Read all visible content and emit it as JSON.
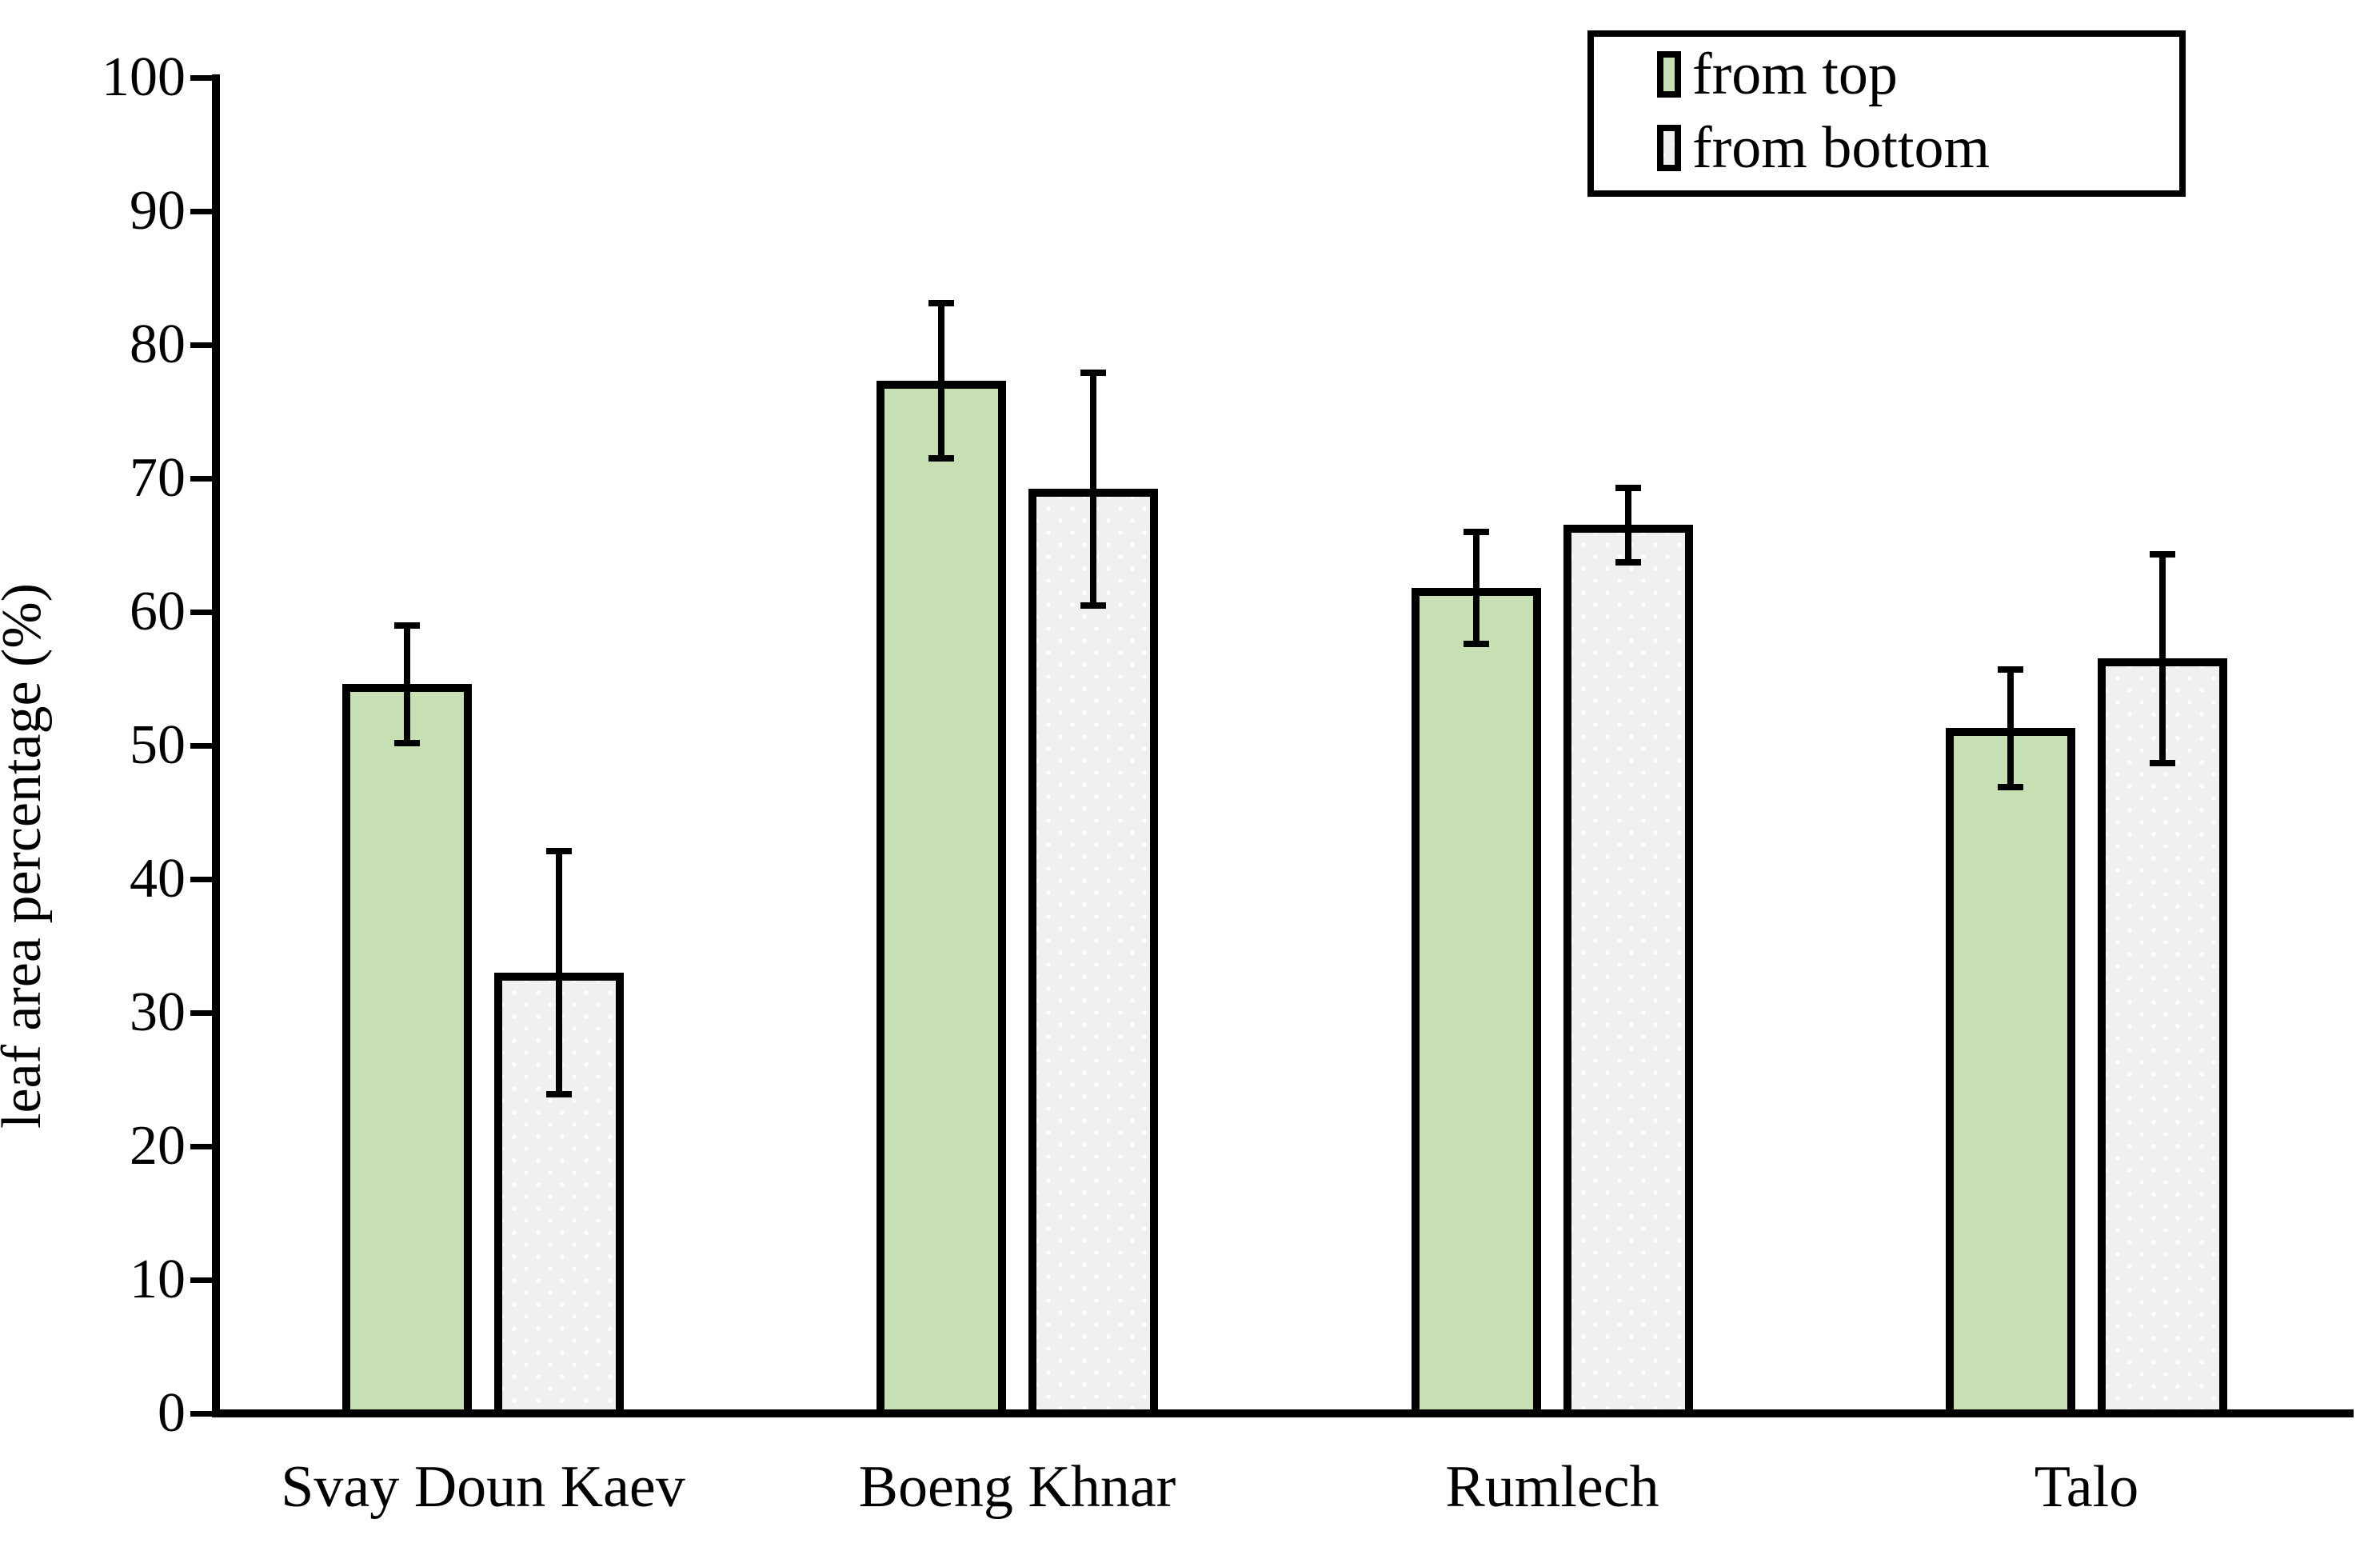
{
  "chart_data": {
    "type": "bar",
    "title": "",
    "xlabel": "",
    "ylabel": "leaf area percentage (%)",
    "ylim": [
      0,
      100
    ],
    "yticks": [
      0,
      10,
      20,
      30,
      40,
      50,
      60,
      70,
      80,
      90,
      100
    ],
    "grid": false,
    "error_bars": true,
    "legend_position": "top-right",
    "categories": [
      "Svay Doun Kaev",
      "Boeng Khnar",
      "Rumlech",
      "Talo"
    ],
    "series": [
      {
        "name": "from top",
        "color": "#c6e0b4",
        "pattern": "solid",
        "values": [
          54.6,
          77.3,
          61.8,
          51.3
        ],
        "errors": [
          4.4,
          5.8,
          4.2,
          4.4
        ]
      },
      {
        "name": "from bottom",
        "color": "#f0f0f0",
        "pattern": "white-dots",
        "values": [
          33.0,
          69.2,
          66.5,
          56.5
        ],
        "errors": [
          9.1,
          8.7,
          2.8,
          7.8
        ]
      }
    ]
  },
  "colors": {
    "background": "#ffffff",
    "axis": "#000000",
    "bar_border": "#000000",
    "text": "#000000",
    "series_from_top": "#c6e0b4",
    "series_from_bottom": "#f0f0f0"
  }
}
